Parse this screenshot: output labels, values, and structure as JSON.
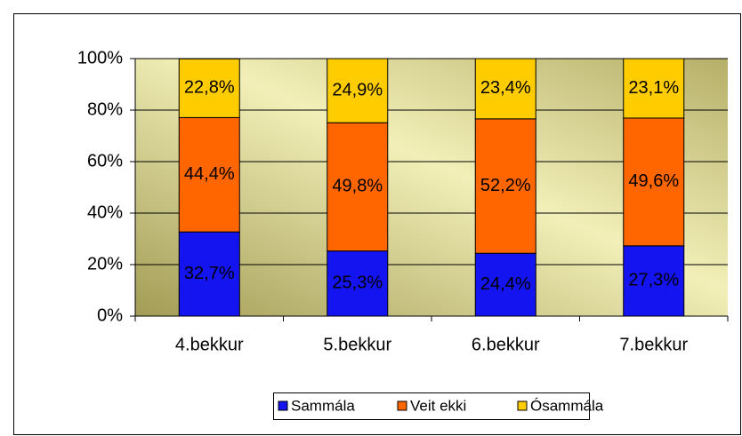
{
  "chart_data": {
    "type": "stacked_bar",
    "categories": [
      "4.bekkur",
      "5.bekkur",
      "6.bekkur",
      "7.bekkur"
    ],
    "series": [
      {
        "name": "Sammála",
        "color": "#1414f0",
        "values": [
          32.7,
          25.3,
          24.4,
          27.3
        ],
        "value_labels": [
          "32,7%",
          "25,3%",
          "24,4%",
          "27,3%"
        ]
      },
      {
        "name": "Veit ekki",
        "color": "#ff6600",
        "values": [
          44.4,
          49.8,
          52.2,
          49.6
        ],
        "value_labels": [
          "44,4%",
          "49,8%",
          "52,2%",
          "49,6%"
        ]
      },
      {
        "name": "Ósammála",
        "color": "#ffcc00",
        "values": [
          22.8,
          24.9,
          23.4,
          23.1
        ],
        "value_labels": [
          "22,8%",
          "24,9%",
          "23,4%",
          "23,1%"
        ]
      }
    ],
    "ylim": [
      0,
      100
    ],
    "yticks": [
      {
        "value": 0,
        "label": "0%"
      },
      {
        "value": 20,
        "label": "20%"
      },
      {
        "value": 40,
        "label": "40%"
      },
      {
        "value": 60,
        "label": "60%"
      },
      {
        "value": 80,
        "label": "80%"
      },
      {
        "value": 100,
        "label": "100%"
      }
    ],
    "grid": true,
    "legend": "bottom"
  }
}
